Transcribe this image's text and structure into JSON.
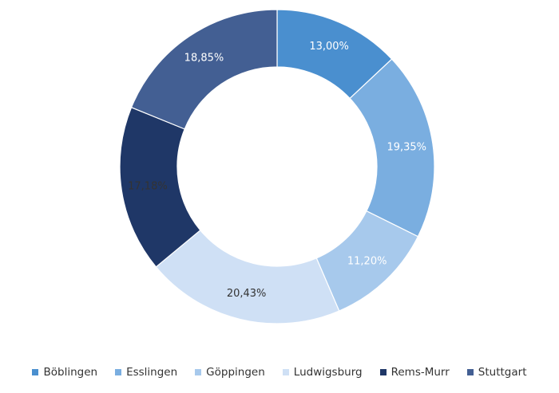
{
  "chart_data": {
    "type": "pie",
    "variant": "donut",
    "labels": [
      "Böblingen",
      "Esslingen",
      "Göppingen",
      "Ludwigsburg",
      "Rems-Murr",
      "Stuttgart"
    ],
    "values": [
      13.0,
      19.35,
      11.2,
      20.43,
      17.18,
      18.85
    ],
    "value_labels": [
      "13,00%",
      "19,35%",
      "11,20%",
      "20,43%",
      "17,18%",
      "18,85%"
    ],
    "colors": [
      "#4a8fcf",
      "#7aaee0",
      "#a7c9ec",
      "#cfe0f5",
      "#1f3767",
      "#435f93"
    ],
    "label_colors": [
      "#ffffff",
      "#ffffff",
      "#ffffff",
      "#333333",
      "#333333",
      "#ffffff"
    ],
    "start": "top",
    "direction": "clockwise",
    "legend_position": "bottom",
    "title": "",
    "xlabel": "",
    "ylabel": ""
  }
}
